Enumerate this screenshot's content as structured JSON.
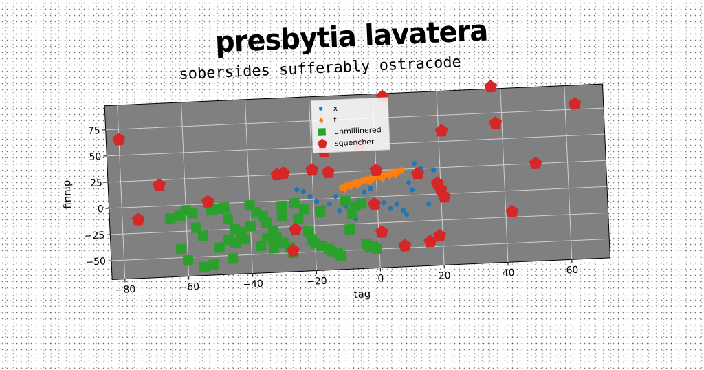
{
  "chart_data": {
    "type": "scatter",
    "title": "presbytia lavatera",
    "subtitle": "sobersides sufferably ostracode",
    "xlabel": "tag",
    "ylabel": "finnip",
    "xlim": [
      -84,
      72
    ],
    "ylim": [
      -68,
      98
    ],
    "xticks": [
      -80,
      -60,
      -40,
      -20,
      0,
      20,
      40,
      60
    ],
    "yticks": [
      -50,
      -25,
      0,
      25,
      50,
      75
    ],
    "grid": true,
    "legend_position": "top-center",
    "plot_background": "#808080",
    "series": [
      {
        "name": "x",
        "marker": "circle",
        "color": "#1f77b4",
        "points": [
          [
            -25,
            10
          ],
          [
            -23,
            8
          ],
          [
            -21,
            3
          ],
          [
            -19,
            -2
          ],
          [
            -17,
            -8
          ],
          [
            -15,
            -5
          ],
          [
            -13,
            2
          ],
          [
            -12,
            -12
          ],
          [
            -10,
            -8
          ],
          [
            -8,
            -15
          ],
          [
            -6,
            -3
          ],
          [
            -4,
            5
          ],
          [
            -2,
            8
          ],
          [
            0,
            -10
          ],
          [
            2,
            -6
          ],
          [
            4,
            -12
          ],
          [
            6,
            -8
          ],
          [
            8,
            -14
          ],
          [
            9,
            -18
          ],
          [
            10,
            12
          ],
          [
            11,
            5
          ],
          [
            12,
            30
          ],
          [
            14,
            25
          ],
          [
            16,
            -9
          ],
          [
            18,
            23
          ],
          [
            -2,
            -6
          ],
          [
            3,
            18
          ],
          [
            -7,
            -20
          ]
        ]
      },
      {
        "name": "t",
        "marker": "diamond",
        "color": "#ff7f0e",
        "points": [
          [
            -11,
            10
          ],
          [
            -10,
            11
          ],
          [
            -9,
            12
          ],
          [
            -8,
            13
          ],
          [
            -7,
            14
          ],
          [
            -6,
            14.5
          ],
          [
            -5,
            15
          ],
          [
            -4,
            16
          ],
          [
            -3,
            16.5
          ],
          [
            -2,
            17
          ],
          [
            -1,
            18
          ],
          [
            0,
            18.5
          ],
          [
            1,
            19
          ],
          [
            2,
            20
          ],
          [
            3,
            20.5
          ],
          [
            4,
            21
          ],
          [
            5,
            22
          ],
          [
            6,
            22.5
          ],
          [
            7,
            23
          ],
          [
            8,
            24
          ],
          [
            -10,
            9
          ],
          [
            -6,
            12
          ],
          [
            -2,
            15
          ],
          [
            2,
            17
          ],
          [
            6,
            20
          ],
          [
            -8,
            11
          ],
          [
            4,
            19
          ]
        ]
      },
      {
        "name": "unmillinered",
        "marker": "square",
        "color": "#2ca02c",
        "points": [
          [
            -65,
            -12
          ],
          [
            -62,
            -10
          ],
          [
            -60,
            -5
          ],
          [
            -58,
            -8
          ],
          [
            -57,
            -22
          ],
          [
            -55,
            -30
          ],
          [
            -52,
            -6
          ],
          [
            -50,
            -5
          ],
          [
            -48,
            -4
          ],
          [
            -47,
            -15
          ],
          [
            -45,
            -25
          ],
          [
            -43,
            -28
          ],
          [
            -42,
            -35
          ],
          [
            -40,
            -3
          ],
          [
            -38,
            -10
          ],
          [
            -36,
            -14
          ],
          [
            -35,
            -20
          ],
          [
            -33,
            -28
          ],
          [
            -32,
            -35
          ],
          [
            -30,
            -40
          ],
          [
            -28,
            -45
          ],
          [
            -27,
            -50
          ],
          [
            -26,
            -3
          ],
          [
            -25,
            -18
          ],
          [
            -23,
            -9
          ],
          [
            -22,
            -30
          ],
          [
            -21,
            -38
          ],
          [
            -20,
            -42
          ],
          [
            -18,
            -45
          ],
          [
            -16,
            -48
          ],
          [
            -15,
            -50
          ],
          [
            -13,
            -52
          ],
          [
            -12,
            -55
          ],
          [
            -10,
            -3
          ],
          [
            -9,
            -30
          ],
          [
            -7,
            -8
          ],
          [
            -5,
            -6
          ],
          [
            -4,
            -45
          ],
          [
            -3,
            -48
          ],
          [
            -2,
            -47
          ],
          [
            -1,
            -50
          ],
          [
            -30,
            -5
          ],
          [
            -55,
            -60
          ],
          [
            -52,
            -58
          ],
          [
            -50,
            -42
          ],
          [
            -47,
            -35
          ],
          [
            -45,
            -38
          ],
          [
            -40,
            -23
          ],
          [
            -37,
            -42
          ],
          [
            -35,
            -35
          ],
          [
            -33,
            -45
          ],
          [
            -30,
            -15
          ],
          [
            -62,
            -42
          ],
          [
            -18,
            -12
          ],
          [
            -8,
            -15
          ],
          [
            -60,
            -53
          ],
          [
            -46,
            -53
          ]
        ]
      },
      {
        "name": "squencher",
        "marker": "pentagon",
        "color": "#d62728",
        "points": [
          [
            -80,
            65
          ],
          [
            -75,
            -12
          ],
          [
            -68,
            20
          ],
          [
            -53,
            2
          ],
          [
            -31,
            25
          ],
          [
            -29,
            26
          ],
          [
            -26,
            -28
          ],
          [
            -27,
            -48
          ],
          [
            -20,
            28
          ],
          [
            -16,
            45
          ],
          [
            -15,
            25
          ],
          [
            -5,
            50
          ],
          [
            -1,
            -7
          ],
          [
            1,
            -34
          ],
          [
            0,
            25
          ],
          [
            3,
            95
          ],
          [
            8,
            -48
          ],
          [
            13,
            20
          ],
          [
            16,
            -45
          ],
          [
            19,
            -40
          ],
          [
            19,
            10
          ],
          [
            20,
            4
          ],
          [
            21,
            -3
          ],
          [
            21,
            60
          ],
          [
            37,
            100
          ],
          [
            38,
            65
          ],
          [
            42,
            -20
          ],
          [
            50,
            25
          ],
          [
            63,
            80
          ]
        ]
      }
    ]
  }
}
